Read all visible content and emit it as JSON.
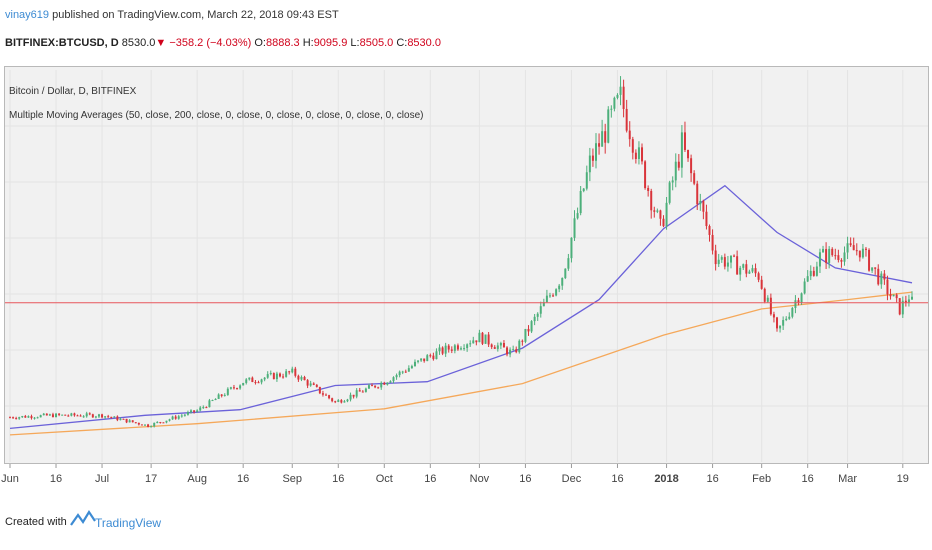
{
  "header": {
    "publisher": "vinay619",
    "published_text": "published on TradingView.com, March 22, 2018 09:43 EST",
    "symbol": "BITFINEX:BTCUSD, D",
    "last": "8530.0",
    "change": "▼ −358.2 (−4.03%)",
    "open_label": "O:",
    "open": "8888.3",
    "high_label": "H:",
    "high": "9095.9",
    "low_label": "L:",
    "low": "8505.0",
    "close_label": "C:",
    "close": "8530.0"
  },
  "legend": {
    "series_title": "Bitcoin / Dollar, D, BITFINEX",
    "indicator": "Multiple Moving Averages (50, close, 200, close, 0, close, 0, close, 0, close, 0, close, 0, close)"
  },
  "footer": {
    "created_with": "Created with",
    "brand": "TradingView"
  },
  "colors": {
    "up": "#4caf7a",
    "down": "#d9343a",
    "ma50": "#6b62d9",
    "ma200": "#f5a85a",
    "price_line": "#e8575c"
  },
  "chart_data": {
    "type": "candlestick",
    "title": "Bitcoin / Dollar, D, BITFINEX",
    "x_ticks": [
      "Jun",
      "16",
      "Jul",
      "17",
      "Aug",
      "16",
      "Sep",
      "16",
      "Oct",
      "16",
      "Nov",
      "16",
      "Dec",
      "16",
      "2018",
      "16",
      "Feb",
      "16",
      "Mar",
      "19"
    ],
    "x_range": [
      "2017-06-01",
      "2018-03-22"
    ],
    "grid": true,
    "last_price": 8530.0,
    "series": [
      {
        "name": "BTCUSD",
        "type": "candlestick",
        "ohlc_close_points": [
          [
            "2017-06-01",
            2400
          ],
          [
            "2017-06-15",
            2500
          ],
          [
            "2017-07-01",
            2500
          ],
          [
            "2017-07-16",
            1950
          ],
          [
            "2017-08-01",
            2750
          ],
          [
            "2017-08-16",
            4300
          ],
          [
            "2017-09-01",
            4800
          ],
          [
            "2017-09-15",
            3200
          ],
          [
            "2017-10-01",
            4300
          ],
          [
            "2017-10-16",
            5700
          ],
          [
            "2017-11-01",
            6700
          ],
          [
            "2017-11-12",
            5800
          ],
          [
            "2017-11-28",
            10000
          ],
          [
            "2017-12-07",
            16000
          ],
          [
            "2017-12-17",
            19500
          ],
          [
            "2017-12-30",
            12500
          ],
          [
            "2018-01-06",
            17000
          ],
          [
            "2018-01-17",
            11000
          ],
          [
            "2018-01-31",
            10000
          ],
          [
            "2018-02-06",
            6900
          ],
          [
            "2018-02-20",
            11000
          ],
          [
            "2018-03-05",
            11400
          ],
          [
            "2018-03-18",
            8200
          ],
          [
            "2018-03-21",
            8900
          ],
          [
            "2018-03-22",
            8530
          ]
        ]
      },
      {
        "name": "MA 50",
        "type": "line",
        "points": [
          [
            "2017-06-01",
            1800
          ],
          [
            "2017-07-15",
            2500
          ],
          [
            "2017-08-15",
            2800
          ],
          [
            "2017-09-15",
            4100
          ],
          [
            "2017-10-15",
            4300
          ],
          [
            "2017-11-15",
            6100
          ],
          [
            "2017-12-10",
            8700
          ],
          [
            "2017-12-31",
            12500
          ],
          [
            "2018-01-20",
            14800
          ],
          [
            "2018-02-06",
            12300
          ],
          [
            "2018-02-25",
            10400
          ],
          [
            "2018-03-22",
            9600
          ]
        ]
      },
      {
        "name": "MA 200",
        "type": "line",
        "points": [
          [
            "2017-06-01",
            1450
          ],
          [
            "2017-08-01",
            2050
          ],
          [
            "2017-10-01",
            2850
          ],
          [
            "2017-11-15",
            4200
          ],
          [
            "2017-12-31",
            6800
          ],
          [
            "2018-02-01",
            8200
          ],
          [
            "2018-03-01",
            8700
          ],
          [
            "2018-03-22",
            9100
          ]
        ]
      }
    ]
  }
}
